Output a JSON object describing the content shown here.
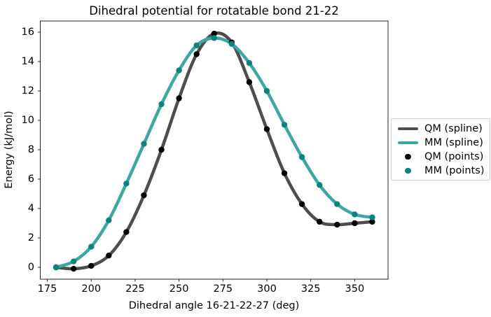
{
  "figure": {
    "title": "Dihedral potential for rotatable bond 21-22",
    "xlabel": "Dihedral angle 16-21-22-27 (deg)",
    "ylabel": "Energy (kJ/mol)"
  },
  "chart_data": {
    "type": "line",
    "title": "Dihedral potential for rotatable bond 21-22",
    "xlabel": "Dihedral angle 16-21-22-27 (deg)",
    "ylabel": "Energy (kJ/mol)",
    "xlim": [
      171,
      369
    ],
    "ylim": [
      -0.81,
      16.76
    ],
    "xticks": [
      175,
      200,
      225,
      250,
      275,
      300,
      325,
      350
    ],
    "yticks": [
      0,
      2,
      4,
      6,
      8,
      10,
      12,
      14,
      16
    ],
    "grid": false,
    "legend_position": "center right outside",
    "x": [
      180,
      190,
      200,
      210,
      220,
      230,
      240,
      250,
      260,
      270,
      280,
      290,
      300,
      310,
      320,
      330,
      340,
      350,
      360
    ],
    "series": [
      {
        "name": "QM (spline)",
        "kind": "spline",
        "color": "#4d4d4d",
        "linewidth": 4.5,
        "values": [
          0.0,
          -0.1,
          0.1,
          0.8,
          2.4,
          4.9,
          8.0,
          11.5,
          14.5,
          15.9,
          15.3,
          12.6,
          9.4,
          6.4,
          4.3,
          3.1,
          2.9,
          3.0,
          3.1
        ]
      },
      {
        "name": "MM (spline)",
        "kind": "spline",
        "color": "#3fa7a1",
        "linewidth": 4.5,
        "values": [
          0.0,
          0.4,
          1.4,
          3.2,
          5.7,
          8.4,
          11.1,
          13.4,
          15.1,
          15.6,
          15.2,
          13.9,
          12.0,
          9.7,
          7.5,
          5.6,
          4.3,
          3.6,
          3.4
        ]
      },
      {
        "name": "QM (points)",
        "kind": "scatter",
        "color": "#000000",
        "markerradius": 4.2,
        "values": [
          0.0,
          -0.1,
          0.1,
          0.8,
          2.4,
          4.9,
          8.0,
          11.5,
          14.5,
          15.9,
          15.3,
          12.6,
          9.4,
          6.4,
          4.3,
          3.1,
          2.9,
          3.0,
          3.1
        ]
      },
      {
        "name": "MM (points)",
        "kind": "scatter",
        "color": "#0c837c",
        "markerradius": 4.2,
        "values": [
          0.0,
          0.4,
          1.4,
          3.2,
          5.7,
          8.4,
          11.1,
          13.4,
          15.1,
          15.6,
          15.2,
          13.9,
          12.0,
          9.7,
          7.5,
          5.6,
          4.3,
          3.6,
          3.4
        ]
      }
    ],
    "legend_entries": [
      {
        "label": "QM (spline)",
        "sample": "line",
        "color": "#4d4d4d"
      },
      {
        "label": "MM (spline)",
        "sample": "line",
        "color": "#3fa7a1"
      },
      {
        "label": "QM (points)",
        "sample": "dot",
        "color": "#000000"
      },
      {
        "label": "MM (points)",
        "sample": "dot",
        "color": "#0c837c"
      }
    ],
    "axis_color": "#262626"
  }
}
